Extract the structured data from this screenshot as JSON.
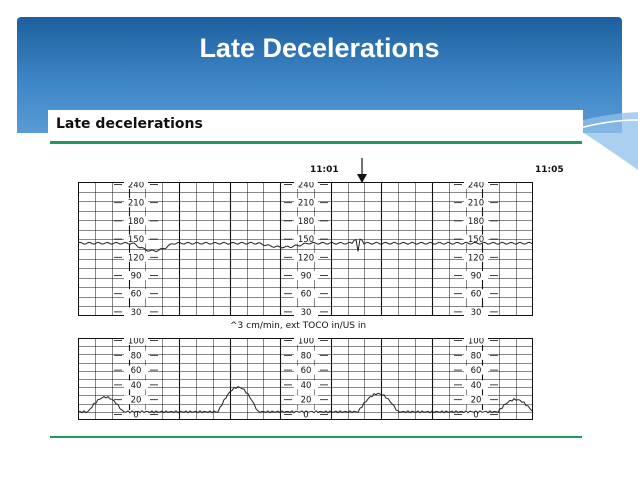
{
  "slide": {
    "title": "Late Decelerations"
  },
  "figure": {
    "title": "Late decelerations",
    "time_markers": [
      "11:01",
      "11:05"
    ],
    "toco_note": "^3 cm/min, ext TOCO in/US in",
    "fhr_scale": [
      "240",
      "210",
      "180",
      "150",
      "120",
      "90",
      "60",
      "30"
    ],
    "uc_scale": [
      "100",
      "80",
      "60",
      "40",
      "20",
      "0"
    ]
  },
  "colors": {
    "banner": "#2f75b8",
    "rule": "#1f9a5c",
    "grid": "#111111"
  }
}
